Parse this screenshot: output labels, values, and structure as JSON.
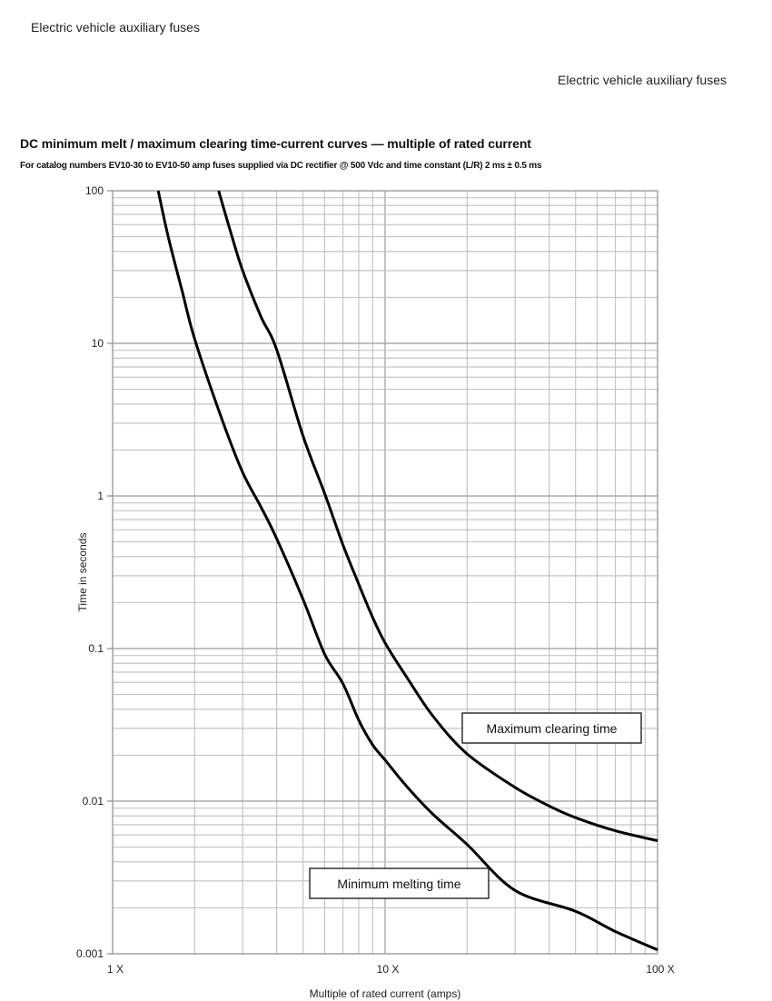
{
  "page": {
    "header_left": "Electric vehicle auxiliary fuses",
    "header_right": "Electric vehicle auxiliary fuses",
    "title": "DC minimum melt / maximum clearing time-current curves — multiple of rated current",
    "subtitle": "For catalog numbers EV10-30 to EV10-50 amp fuses supplied via DC rectifier @ 500 Vdc and time constant (L/R) 2 ms ± 0.5 ms"
  },
  "colors": {
    "grid": "#c4c4c4",
    "grid_major": "#a8a8a8",
    "curve": "#000000",
    "text": "#222222"
  },
  "chart_data": {
    "type": "line",
    "title": "DC minimum melt / maximum clearing time-current curves — multiple of rated current",
    "subtitle": "For catalog numbers EV10-30 to EV10-50 amp fuses supplied via DC rectifier @ 500 Vdc and time constant (L/R) 2 ms ± 0.5 ms",
    "xlabel": "Multiple of rated current (amps)",
    "ylabel": "Time in seconds",
    "xscale": "log",
    "yscale": "log",
    "xlim": [
      1,
      100
    ],
    "ylim": [
      0.001,
      100
    ],
    "x_ticks": [
      {
        "value": 1,
        "label": "1 X"
      },
      {
        "value": 10,
        "label": "10 X"
      },
      {
        "value": 100,
        "label": "100 X"
      }
    ],
    "y_ticks": [
      {
        "value": 100,
        "label": "100"
      },
      {
        "value": 10,
        "label": "10"
      },
      {
        "value": 1,
        "label": "1"
      },
      {
        "value": 0.1,
        "label": "0.1"
      },
      {
        "value": 0.01,
        "label": "0.01"
      },
      {
        "value": 0.001,
        "label": "0.001"
      }
    ],
    "grid": true,
    "legend": "inline annotation boxes",
    "series": [
      {
        "name": "Minimum melting time",
        "label_box": {
          "x": 1.45,
          "y": 0.0028
        },
        "x": [
          1.47,
          1.6,
          1.8,
          2.0,
          2.5,
          3.0,
          3.5,
          4.0,
          5.0,
          6.0,
          7.0,
          8.0,
          9.0,
          10,
          12,
          15,
          20,
          30,
          50,
          70,
          100
        ],
        "y": [
          100,
          50,
          22,
          10.7,
          3.3,
          1.43,
          0.85,
          0.525,
          0.21,
          0.092,
          0.059,
          0.034,
          0.0234,
          0.0186,
          0.0125,
          0.0082,
          0.0052,
          0.0026,
          0.0019,
          0.0014,
          0.00106
        ]
      },
      {
        "name": "Maximum clearing time",
        "label_box": {
          "x": 18,
          "y": 0.027
        },
        "x": [
          2.45,
          2.7,
          3.0,
          3.5,
          4.0,
          5.0,
          6.0,
          7.0,
          8.0,
          9.0,
          10,
          12,
          15,
          20,
          30,
          40,
          50,
          70,
          100
        ],
        "y": [
          100,
          55,
          30,
          15,
          9.1,
          2.47,
          1.04,
          0.48,
          0.265,
          0.16,
          0.109,
          0.065,
          0.036,
          0.0204,
          0.0123,
          0.0093,
          0.0078,
          0.0064,
          0.0055
        ]
      }
    ]
  }
}
